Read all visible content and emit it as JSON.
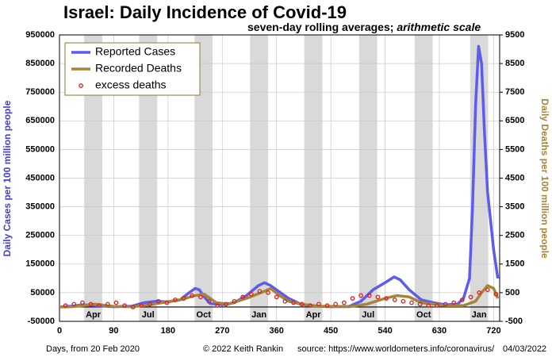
{
  "chart_data": {
    "type": "line",
    "title": "Israel: Daily Incidence of Covid-19",
    "subtitle": "seven-day rolling averages; ",
    "subtitle_italic": "arithmetic scale",
    "y_label": "Daily Cases per 100 million people",
    "y2_label": "Daily Deaths per 100 million people",
    "x_label": "Days, from 20 Feb 2020",
    "credit": "© 2022  Keith Rankin",
    "source": "source: https://www.worldometers.info/coronavirus/",
    "date": "04/03/2022",
    "xlim": [
      0,
      730
    ],
    "xticks": [
      0,
      90,
      180,
      270,
      360,
      450,
      540,
      630,
      720
    ],
    "ylim": [
      -50000,
      950000
    ],
    "yticks": [
      -50000,
      50000,
      150000,
      250000,
      350000,
      450000,
      550000,
      650000,
      750000,
      850000,
      950000
    ],
    "y2lim": [
      -500,
      9500
    ],
    "y2ticks": [
      -500,
      500,
      1500,
      2500,
      3500,
      4500,
      5500,
      6500,
      7500,
      8500,
      9500
    ],
    "grid": true,
    "legend": "top-left",
    "month_bands": [
      {
        "start": 41,
        "end": 71,
        "label": "Apr"
      },
      {
        "start": 132,
        "end": 162,
        "label": "Jul"
      },
      {
        "start": 224,
        "end": 254,
        "label": "Oct"
      },
      {
        "start": 316,
        "end": 346,
        "label": "Jan"
      },
      {
        "start": 406,
        "end": 436,
        "label": "Apr"
      },
      {
        "start": 497,
        "end": 527,
        "label": "Jul"
      },
      {
        "start": 589,
        "end": 619,
        "label": "Oct"
      },
      {
        "start": 681,
        "end": 711,
        "label": "Jan"
      }
    ],
    "series": [
      {
        "name": "Reported Cases",
        "color": "#5c5cf0",
        "style": "line",
        "axis": "y",
        "x": [
          0,
          20,
          40,
          60,
          90,
          120,
          140,
          160,
          180,
          200,
          215,
          225,
          232,
          240,
          250,
          270,
          290,
          310,
          330,
          340,
          350,
          360,
          370,
          380,
          400,
          420,
          450,
          480,
          500,
          520,
          540,
          555,
          565,
          580,
          600,
          620,
          640,
          660,
          670,
          680,
          685,
          690,
          695,
          700,
          705,
          710,
          715,
          720,
          727
        ],
        "values": [
          0,
          3000,
          8000,
          5000,
          1000,
          3000,
          15000,
          20000,
          18000,
          25000,
          50000,
          65000,
          60000,
          35000,
          12000,
          8000,
          15000,
          40000,
          75000,
          85000,
          75000,
          60000,
          45000,
          30000,
          10000,
          3000,
          1000,
          2000,
          20000,
          60000,
          85000,
          105000,
          95000,
          60000,
          25000,
          15000,
          8000,
          10000,
          30000,
          100000,
          350000,
          700000,
          910000,
          850000,
          600000,
          400000,
          300000,
          200000,
          100000
        ]
      },
      {
        "name": "Recorded Deaths",
        "color": "#a8843a",
        "style": "line",
        "axis": "y2",
        "x": [
          0,
          20,
          40,
          60,
          90,
          120,
          140,
          170,
          200,
          225,
          240,
          260,
          280,
          310,
          340,
          350,
          365,
          380,
          400,
          430,
          480,
          510,
          540,
          560,
          580,
          600,
          640,
          670,
          690,
          700,
          710,
          720,
          727
        ],
        "values": [
          0,
          10,
          50,
          100,
          20,
          10,
          50,
          150,
          250,
          400,
          450,
          150,
          100,
          300,
          550,
          650,
          400,
          200,
          100,
          30,
          10,
          100,
          300,
          400,
          350,
          150,
          50,
          50,
          200,
          500,
          750,
          650,
          300
        ]
      },
      {
        "name": "excess deaths",
        "color": "#e02020",
        "style": "marker",
        "axis": "y2",
        "x": [
          10,
          24,
          38,
          52,
          66,
          80,
          94,
          108,
          122,
          136,
          150,
          164,
          178,
          192,
          206,
          220,
          234,
          248,
          262,
          276,
          290,
          304,
          318,
          332,
          346,
          360,
          374,
          388,
          402,
          416,
          430,
          444,
          458,
          472,
          486,
          500,
          514,
          528,
          542,
          556,
          570,
          584,
          598,
          612,
          626,
          640,
          654,
          668,
          682,
          696,
          710,
          724
        ],
        "values": [
          50,
          100,
          150,
          100,
          50,
          100,
          150,
          50,
          0,
          50,
          100,
          200,
          150,
          250,
          300,
          400,
          350,
          200,
          50,
          100,
          200,
          350,
          450,
          550,
          500,
          350,
          200,
          150,
          100,
          50,
          100,
          50,
          100,
          150,
          300,
          400,
          400,
          350,
          300,
          250,
          200,
          150,
          100,
          50,
          50,
          100,
          150,
          250,
          350,
          500,
          600,
          450
        ]
      }
    ]
  }
}
